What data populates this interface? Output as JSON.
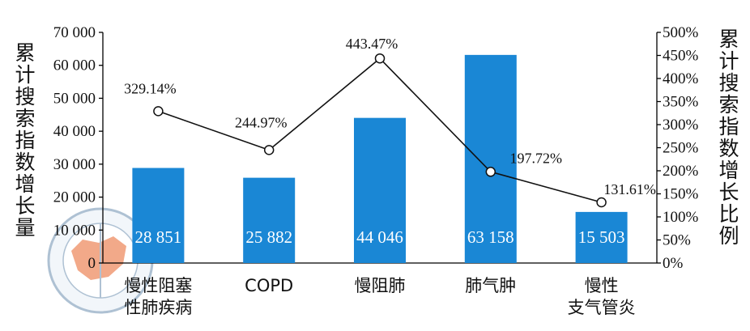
{
  "chart_data": {
    "type": "bar",
    "categories": [
      [
        "慢性阻塞",
        "性肺疾病"
      ],
      [
        "COPD"
      ],
      [
        "慢阻肺"
      ],
      [
        "肺气肿"
      ],
      [
        "慢性",
        "支气管炎"
      ]
    ],
    "series": [
      {
        "name": "累计搜索指数增长量",
        "type": "bar",
        "axis": "left",
        "values": [
          28851,
          25882,
          44046,
          63158,
          15503
        ],
        "labels": [
          "28 851",
          "25 882",
          "44 046",
          "63 158",
          "15 503"
        ],
        "color": "#1a87d5"
      },
      {
        "name": "累计搜索指数增长比例",
        "type": "line",
        "axis": "right",
        "values": [
          329.14,
          244.97,
          443.47,
          197.72,
          131.61
        ],
        "labels": [
          "329.14%",
          "244.97%",
          "443.47%",
          "197.72%",
          "131.61%"
        ],
        "color": "#111111"
      }
    ],
    "y_left": {
      "label": "累计搜索指数增长量",
      "range": [
        0,
        70000
      ],
      "ticks": [
        0,
        10000,
        20000,
        30000,
        40000,
        50000,
        60000,
        70000
      ],
      "tick_labels": [
        "0",
        "10 000",
        "20 000",
        "30 000",
        "40 000",
        "50 000",
        "60 000",
        "70 000"
      ]
    },
    "y_right": {
      "label": "累计搜索指数增长比例",
      "range": [
        0,
        500
      ],
      "ticks": [
        0,
        50,
        100,
        150,
        200,
        250,
        300,
        350,
        400,
        450,
        500
      ],
      "tick_labels": [
        "0%",
        "50%",
        "100%",
        "150%",
        "200%",
        "250%",
        "300%",
        "350%",
        "400%",
        "450%",
        "500%"
      ]
    },
    "grid": false,
    "legend": "none"
  }
}
